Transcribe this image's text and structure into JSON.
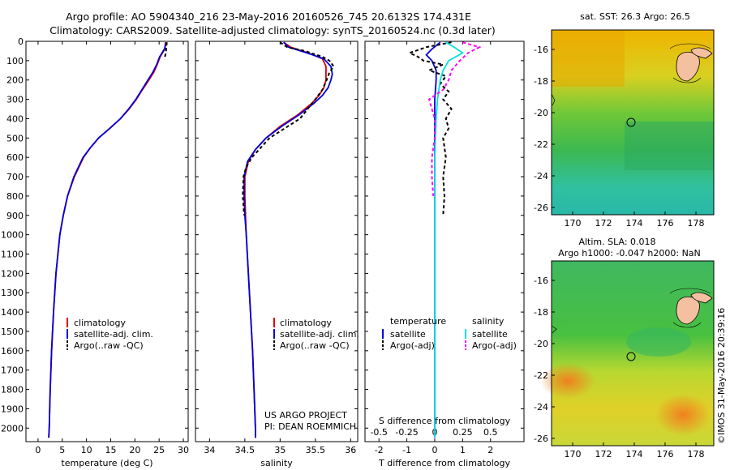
{
  "header": {
    "line1": "Argo profile: AO 5904340_216 23-May-2016 20160526_745 20.6132S 174.431E",
    "line2": "Climatology: CARS2009. Satellite-adjusted climatology: synTS_20160524.nc (0.3d later)"
  },
  "colors": {
    "climatology": "#e00000",
    "satellite": "#0000e0",
    "argo": "#000000",
    "sat_salinity": "#00e0e0",
    "argo_salinity": "#ff00ff",
    "land": "#f4c0a0"
  },
  "chart_data": [
    {
      "type": "line",
      "panel": "temperature",
      "xlabel": "temperature (deg C)",
      "xlim": [
        -2.5,
        31
      ],
      "xticks": [
        0,
        5,
        10,
        15,
        20,
        25,
        30
      ],
      "ylim": [
        2070,
        0
      ],
      "yticks": [
        0,
        100,
        200,
        300,
        400,
        500,
        600,
        700,
        800,
        900,
        1000,
        1100,
        1200,
        1300,
        1400,
        1500,
        1600,
        1700,
        1800,
        1900,
        2000
      ],
      "legend": [
        "climatology",
        "satellite-adj. clim.",
        "Argo(..raw -QC)"
      ],
      "series": [
        {
          "name": "climatology",
          "color": "#e00000",
          "depth": [
            5,
            40,
            80,
            120,
            160,
            200,
            260,
            300,
            350,
            400,
            450,
            500,
            550,
            600,
            700,
            800,
            900,
            1000,
            1200,
            1400,
            1600,
            1800,
            2000,
            2050
          ],
          "values": [
            26.3,
            26.2,
            25.2,
            24.6,
            23.9,
            22.9,
            21.3,
            20.3,
            18.8,
            17.0,
            14.8,
            12.5,
            10.8,
            9.4,
            7.5,
            6.1,
            5.2,
            4.5,
            3.7,
            3.2,
            2.8,
            2.5,
            2.3,
            2.2
          ]
        },
        {
          "name": "satellite-adj. clim.",
          "color": "#0000e0",
          "depth": [
            5,
            40,
            80,
            120,
            160,
            200,
            260,
            300,
            350,
            400,
            450,
            500,
            550,
            600,
            700,
            800,
            900,
            1000,
            1200,
            1400,
            1600,
            1800,
            2000,
            2050
          ],
          "values": [
            26.5,
            26.1,
            25.1,
            24.5,
            23.7,
            22.7,
            21.2,
            20.2,
            18.7,
            17.0,
            14.8,
            12.5,
            10.8,
            9.3,
            7.4,
            6.1,
            5.2,
            4.5,
            3.7,
            3.2,
            2.8,
            2.5,
            2.3,
            2.2
          ]
        },
        {
          "name": "Argo(..raw -QC)",
          "color": "#000000",
          "depth": [
            5,
            30,
            60,
            80
          ],
          "values": [
            26.6,
            26.5,
            26.4,
            26.2
          ]
        }
      ]
    },
    {
      "type": "line",
      "panel": "salinity",
      "xlabel": "salinity",
      "xlim": [
        33.8,
        36.1
      ],
      "xticks": [
        34,
        34.5,
        35,
        35.5,
        36
      ],
      "ylim": [
        2070,
        0
      ],
      "legend": [
        "climatology",
        "satellite-adj. clim.",
        "Argo(..raw -QC)"
      ],
      "annotation": [
        "US ARGO PROJECT",
        "PI: DEAN ROEMMICH"
      ],
      "series": [
        {
          "name": "climatology",
          "color": "#e00000",
          "depth": [
            5,
            30,
            60,
            90,
            130,
            170,
            200,
            240,
            280,
            320,
            380,
            440,
            500,
            560,
            620,
            700,
            800,
            900,
            1000,
            1200,
            1400,
            1600,
            1800,
            2000,
            2050
          ],
          "values": [
            35.05,
            35.15,
            35.4,
            35.6,
            35.65,
            35.65,
            35.65,
            35.62,
            35.55,
            35.45,
            35.25,
            35.0,
            34.8,
            34.65,
            34.55,
            34.5,
            34.5,
            34.51,
            34.52,
            34.55,
            34.58,
            34.61,
            34.63,
            34.65,
            34.65
          ]
        },
        {
          "name": "satellite-adj. clim.",
          "color": "#0000e0",
          "depth": [
            5,
            30,
            60,
            90,
            130,
            170,
            200,
            240,
            280,
            320,
            380,
            440,
            500,
            560,
            620,
            700,
            800,
            900,
            1000,
            1200,
            1400,
            1600,
            1800,
            2000,
            2050
          ],
          "values": [
            35.05,
            35.12,
            35.38,
            35.62,
            35.72,
            35.74,
            35.72,
            35.68,
            35.6,
            35.48,
            35.27,
            35.02,
            34.8,
            34.65,
            34.54,
            34.49,
            34.49,
            34.5,
            34.52,
            34.55,
            34.58,
            34.61,
            34.63,
            34.65,
            34.65
          ]
        },
        {
          "name": "Argo(..raw -QC)",
          "color": "#000000",
          "depth": [
            5,
            30,
            50,
            80,
            100,
            130,
            160,
            200,
            250,
            300,
            400,
            500,
            600,
            650,
            700,
            800,
            900
          ],
          "values": [
            35.0,
            35.1,
            35.35,
            35.6,
            35.7,
            35.76,
            35.7,
            35.66,
            35.6,
            35.5,
            35.28,
            34.85,
            34.6,
            34.52,
            34.48,
            34.47,
            34.49
          ]
        }
      ]
    },
    {
      "type": "line",
      "panel": "difference",
      "xlabel": "T difference from climatology",
      "xlabel_top": "S difference from climatology",
      "xlim": [
        -2.5,
        3.2
      ],
      "xticks": [
        -2,
        -1,
        0,
        1,
        2
      ],
      "sticks_top": [
        -0.5,
        -0.25,
        0,
        0.25,
        0.5
      ],
      "ylim": [
        2070,
        0
      ],
      "legend_temperature_title": "temperature",
      "legend_salinity_title": "salinity",
      "legend_labels": {
        "t_sat": "satellite",
        "t_argo": "Argo(-adj)",
        "s_sat": "satellite",
        "s_argo": "Argo(-adj)"
      },
      "series": [
        {
          "name": "T satellite",
          "color": "#0000e0",
          "depth": [
            5,
            40,
            70,
            100,
            150,
            200,
            300,
            400,
            600,
            800,
            1000,
            1500,
            2050
          ],
          "values": [
            0.2,
            -0.1,
            -0.3,
            -0.1,
            0.05,
            0.05,
            0.0,
            0.0,
            0.0,
            0.0,
            0.0,
            0.0,
            0.0
          ]
        },
        {
          "name": "T Argo",
          "color": "#000000",
          "depth": [
            5,
            30,
            60,
            80,
            100,
            120,
            150,
            180,
            220,
            260,
            300,
            350,
            400,
            450,
            500,
            600,
            700,
            800,
            900
          ],
          "values": [
            0.6,
            -0.3,
            -0.9,
            -0.6,
            -0.4,
            0.3,
            -0.2,
            0.4,
            0.2,
            0.5,
            0.3,
            0.6,
            0.4,
            0.5,
            0.3,
            0.4,
            0.3,
            0.35,
            0.3
          ]
        },
        {
          "name": "S satellite",
          "color": "#00e0e0",
          "depth": [
            5,
            30,
            60,
            100,
            150,
            200,
            300,
            400,
            600,
            800,
            1000,
            1500,
            2050
          ],
          "values": [
            0.4,
            0.7,
            1.0,
            0.5,
            0.3,
            0.2,
            0.1,
            0.05,
            0.0,
            0.0,
            0.0,
            0.0,
            0.0
          ]
        },
        {
          "name": "S Argo",
          "color": "#ff00ff",
          "depth": [
            5,
            30,
            60,
            100,
            150,
            200,
            250,
            300,
            350,
            400,
            500,
            600,
            700,
            800
          ],
          "values": [
            1.0,
            1.6,
            1.2,
            0.9,
            0.6,
            0.5,
            0.3,
            -0.2,
            -0.1,
            0.0,
            0.0,
            -0.1,
            -0.1,
            -0.05
          ]
        }
      ]
    }
  ],
  "maps": {
    "sst": {
      "title": "sat. SST: 26.3  Argo: 26.5",
      "xticks": [
        "170",
        "172",
        "174",
        "176",
        "178"
      ],
      "yticks": [
        "-16",
        "-18",
        "-20",
        "-22",
        "-24",
        "-26"
      ]
    },
    "sla": {
      "title1": "Altim. SLA: 0.018",
      "title2": "Argo h1000: -0.047 h2000: NaN",
      "xticks": [
        "170",
        "172",
        "174",
        "176",
        "178"
      ],
      "yticks": [
        "-16",
        "-18",
        "-20",
        "-22",
        "-24",
        "-26"
      ]
    },
    "argo_position": {
      "lon": 174.431,
      "lat": -20.6132
    }
  },
  "footer": {
    "stamp": "©IMOS 31-May-2016 20:39:16"
  }
}
